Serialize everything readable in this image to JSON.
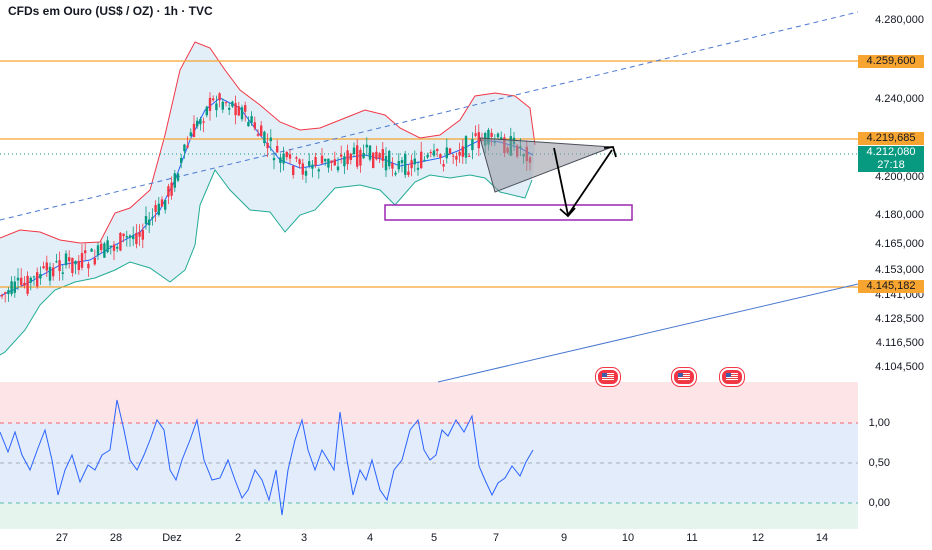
{
  "header": {
    "title": "CFDs em Ouro (US$ / OZ) · 1h · TVC"
  },
  "price_axis": {
    "labels": [
      "4.280,000",
      "4.240,000",
      "4.200,000",
      "4.180,000",
      "4.165,000",
      "4.153,000",
      "4.141,000",
      "4.128,500",
      "4.116,500",
      "4.104,500"
    ],
    "tags": {
      "resistance_top": "4.259,600",
      "resistance_mid": "4.219,685",
      "current_price": "4.212,080",
      "countdown": "27:18",
      "support": "4.145,182"
    }
  },
  "oscillator_axis": {
    "labels": [
      "1,00",
      "0,50",
      "0,00"
    ]
  },
  "time_axis": {
    "labels": [
      "27",
      "28",
      "Dez",
      "2",
      "3",
      "4",
      "5",
      "7",
      "9",
      "10",
      "11",
      "12",
      "14"
    ]
  },
  "events": [
    "us-flag-icon",
    "us-flag-icon",
    "us-flag-icon"
  ],
  "colors": {
    "horizontal_line": "#f7a530",
    "trendline": "#4a78d0",
    "bb_upper": "#f23645",
    "bb_lower": "#22ab94",
    "bb_basis": "#2962ff",
    "bb_fill": "#d6e8f7",
    "candle_up": "#089981",
    "candle_down": "#f23645",
    "rectangle": "#9c27b0",
    "triangle": "#9598a1",
    "oscillator_line": "#2962ff",
    "osc_overbought_zone": "#fde4e6",
    "osc_mid_zone": "#e2ecfb",
    "osc_oversold_zone": "#e6f4ee"
  },
  "chart_data": {
    "type": "candlestick",
    "symbol": "CFDs em Ouro (US$ / OZ)",
    "timeframe": "1h",
    "price_levels": [
      4259.6,
      4219.685,
      4145.182
    ],
    "current_price": 4212.08,
    "y_ticks": [
      4280,
      4240,
      4200,
      4180,
      4165,
      4153,
      4141,
      4128.5,
      4116.5,
      4104.5
    ],
    "x_ticks": [
      "27",
      "28",
      "Dez",
      "2",
      "3",
      "4",
      "5",
      "7",
      "9",
      "10",
      "11",
      "12",
      "14"
    ],
    "oscillator": {
      "ticks": [
        1.0,
        0.5,
        0.0
      ]
    }
  }
}
